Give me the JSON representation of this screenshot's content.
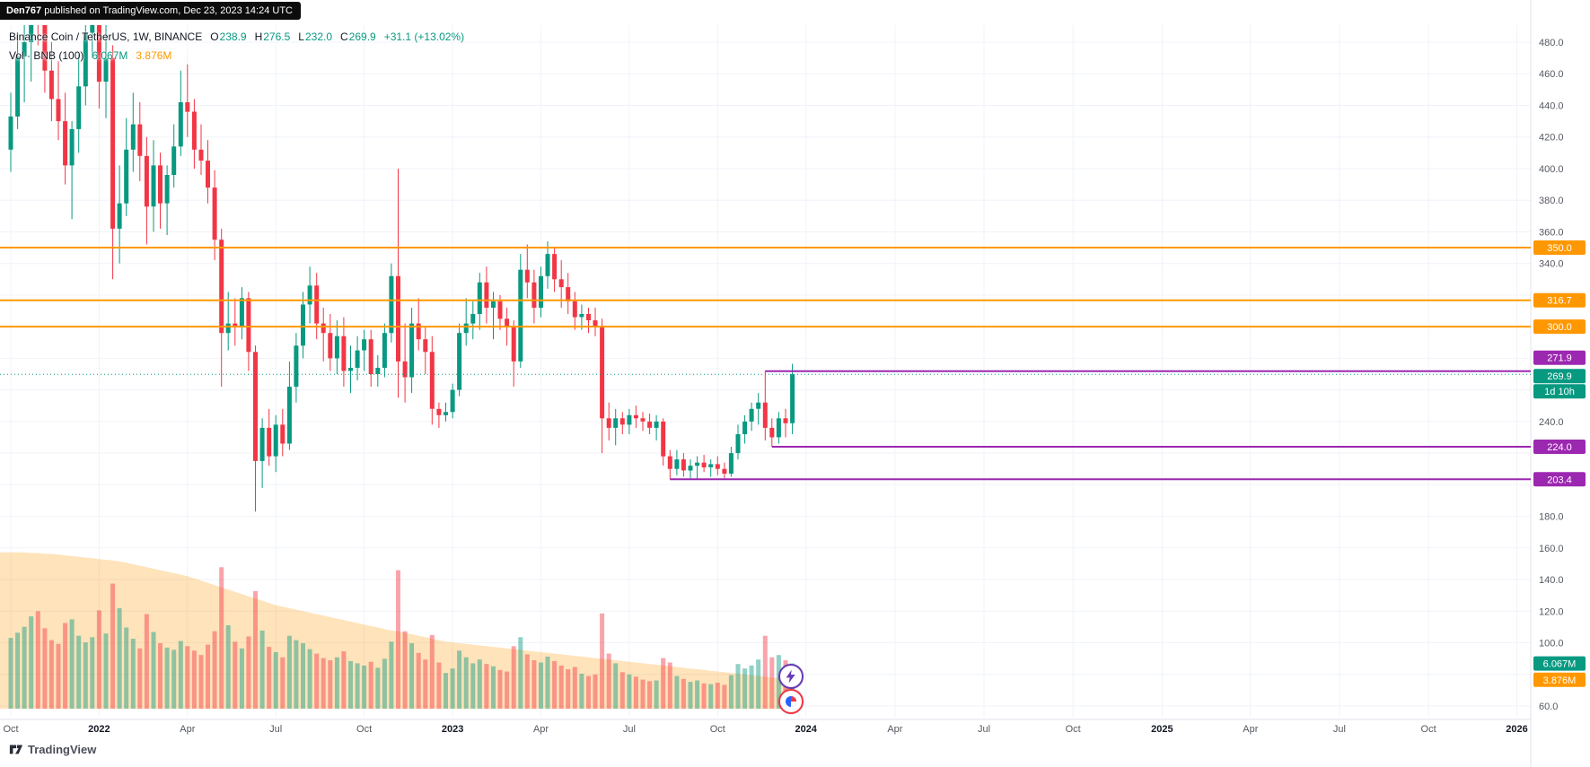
{
  "publisher_badge": {
    "author": "Den767",
    "text": " published on TradingView.com, Dec 23, 2023 14:24 UTC"
  },
  "legend": {
    "symbol": "Binance Coin / TetherUS, 1W, BINANCE",
    "ohlc": [
      {
        "k": "O",
        "v": "238.9"
      },
      {
        "k": "H",
        "v": "276.5"
      },
      {
        "k": "L",
        "v": "232.0"
      },
      {
        "k": "C",
        "v": "269.9"
      }
    ],
    "change": "+31.1 (+13.02%)",
    "volume_label": "Vol · BNB (100)",
    "volume_value": "6.067M",
    "volume_ma_value": "3.876M"
  },
  "footer": {
    "brand": "TradingView"
  },
  "stickers": [
    {
      "name": "lightning-sticker",
      "color": "#673ab7"
    },
    {
      "name": "pie-sticker",
      "color": "#f23645"
    }
  ],
  "chart_data": {
    "type": "candlestick",
    "title": "Binance Coin / TetherUS, 1W, BINANCE",
    "timeframe": "1W",
    "exchange": "BINANCE",
    "grid": true,
    "colors": {
      "up": "#089981",
      "down": "#F23645",
      "vol_area": "#FF9800",
      "grid": "#f0f3fa",
      "border": "#e0e3eb"
    },
    "y_axis": {
      "min": 60,
      "max": 480,
      "step": 20,
      "hidden_labels": [
        320,
        300,
        280,
        260,
        220,
        200,
        80
      ]
    },
    "x_axis": {
      "labels": [
        {
          "text": "Oct",
          "week": 0
        },
        {
          "text": "2022",
          "week": 13
        },
        {
          "text": "Apr",
          "week": 26
        },
        {
          "text": "Jul",
          "week": 39
        },
        {
          "text": "Oct",
          "week": 52
        },
        {
          "text": "2023",
          "week": 65
        },
        {
          "text": "Apr",
          "week": 78
        },
        {
          "text": "Jul",
          "week": 91
        },
        {
          "text": "Oct",
          "week": 104
        },
        {
          "text": "2024",
          "week": 117
        },
        {
          "text": "Apr",
          "week": 130.1
        },
        {
          "text": "Jul",
          "week": 143.2
        },
        {
          "text": "Oct",
          "week": 156.3
        },
        {
          "text": "2025",
          "week": 169.4
        },
        {
          "text": "Apr",
          "week": 182.4
        },
        {
          "text": "Jul",
          "week": 195.5
        },
        {
          "text": "Oct",
          "week": 208.6
        },
        {
          "text": "2026",
          "week": 221.6
        }
      ]
    },
    "last": {
      "price": "269.9",
      "value": 269.9,
      "countdown": "1d 10h",
      "color": "#089981"
    },
    "levels": [
      {
        "label": "350.0",
        "value": 350.0,
        "color": "#FF9800"
      },
      {
        "label": "316.7",
        "value": 316.7,
        "color": "#FF9800"
      },
      {
        "label": "300.0",
        "value": 300.0,
        "color": "#FF9800"
      },
      {
        "label": "271.9",
        "value": 271.9,
        "color": "#9C27B0",
        "from_week": 111,
        "badge_shift": -15
      },
      {
        "label": "224.0",
        "value": 224.0,
        "color": "#9C27B0",
        "from_week": 112
      },
      {
        "label": "203.4",
        "value": 203.4,
        "color": "#9C27B0",
        "from_week": 97
      }
    ],
    "volume_badges": [
      {
        "label": "6.067M",
        "value": 6.067,
        "color": "#089981"
      },
      {
        "label": "3.876M",
        "value": 3.876,
        "color": "#FF9800"
      }
    ],
    "candles": [
      [
        412,
        448,
        398,
        433,
        9.5
      ],
      [
        433,
        486,
        425,
        471,
        10.2
      ],
      [
        471,
        502,
        442,
        480,
        11.0
      ],
      [
        480,
        535,
        455,
        520,
        12.4
      ],
      [
        520,
        556,
        478,
        496,
        13.1
      ],
      [
        496,
        528,
        448,
        462,
        10.8
      ],
      [
        462,
        480,
        430,
        444,
        9.2
      ],
      [
        444,
        468,
        418,
        430,
        8.7
      ],
      [
        430,
        448,
        390,
        402,
        11.5
      ],
      [
        402,
        430,
        368,
        425,
        12.0
      ],
      [
        425,
        472,
        410,
        452,
        9.8
      ],
      [
        452,
        500,
        440,
        486,
        8.9
      ],
      [
        486,
        540,
        470,
        516,
        9.6
      ],
      [
        516,
        534,
        438,
        455,
        13.2
      ],
      [
        455,
        492,
        432,
        470,
        10.1
      ],
      [
        470,
        478,
        330,
        362,
        16.8
      ],
      [
        362,
        402,
        340,
        378,
        13.5
      ],
      [
        378,
        432,
        370,
        412,
        10.9
      ],
      [
        412,
        448,
        398,
        428,
        9.4
      ],
      [
        428,
        442,
        392,
        408,
        8.1
      ],
      [
        408,
        420,
        352,
        376,
        12.7
      ],
      [
        376,
        418,
        360,
        402,
        10.3
      ],
      [
        402,
        410,
        362,
        378,
        8.8
      ],
      [
        378,
        402,
        358,
        396,
        8.2
      ],
      [
        396,
        428,
        388,
        414,
        7.9
      ],
      [
        414,
        462,
        408,
        442,
        9.1
      ],
      [
        442,
        466,
        420,
        436,
        8.4
      ],
      [
        436,
        444,
        400,
        412,
        7.8
      ],
      [
        412,
        428,
        396,
        405,
        7.2
      ],
      [
        405,
        418,
        378,
        388,
        8.6
      ],
      [
        388,
        399,
        342,
        355,
        10.4
      ],
      [
        355,
        362,
        262,
        296,
        19.0
      ],
      [
        296,
        322,
        285,
        302,
        11.2
      ],
      [
        302,
        318,
        288,
        300,
        9.0
      ],
      [
        300,
        325,
        292,
        318,
        8.1
      ],
      [
        318,
        322,
        272,
        284,
        9.7
      ],
      [
        284,
        288,
        183,
        215,
        15.8
      ],
      [
        215,
        242,
        198,
        236,
        10.5
      ],
      [
        236,
        248,
        212,
        218,
        8.3
      ],
      [
        218,
        244,
        208,
        238,
        7.6
      ],
      [
        238,
        248,
        218,
        226,
        6.9
      ],
      [
        226,
        278,
        222,
        262,
        9.8
      ],
      [
        262,
        296,
        252,
        288,
        9.2
      ],
      [
        288,
        322,
        280,
        314,
        8.8
      ],
      [
        314,
        338,
        302,
        326,
        8.0
      ],
      [
        326,
        334,
        292,
        302,
        7.4
      ],
      [
        302,
        312,
        278,
        296,
        6.8
      ],
      [
        296,
        308,
        272,
        280,
        6.5
      ],
      [
        280,
        304,
        270,
        294,
        6.9
      ],
      [
        294,
        306,
        262,
        272,
        7.7
      ],
      [
        272,
        288,
        258,
        274,
        6.4
      ],
      [
        274,
        294,
        266,
        285,
        6.1
      ],
      [
        285,
        298,
        272,
        292,
        5.8
      ],
      [
        292,
        298,
        262,
        270,
        6.3
      ],
      [
        270,
        282,
        262,
        274,
        5.5
      ],
      [
        274,
        302,
        268,
        296,
        6.7
      ],
      [
        296,
        340,
        290,
        332,
        9.0
      ],
      [
        332,
        400,
        255,
        278,
        18.6
      ],
      [
        278,
        302,
        252,
        268,
        10.4
      ],
      [
        268,
        312,
        258,
        302,
        8.8
      ],
      [
        302,
        318,
        285,
        292,
        7.5
      ],
      [
        292,
        300,
        270,
        284,
        6.6
      ],
      [
        284,
        294,
        238,
        248,
        9.9
      ],
      [
        248,
        252,
        236,
        244,
        6.2
      ],
      [
        244,
        252,
        240,
        246,
        4.8
      ],
      [
        246,
        264,
        242,
        260,
        5.4
      ],
      [
        260,
        302,
        256,
        296,
        7.8
      ],
      [
        296,
        318,
        288,
        302,
        6.9
      ],
      [
        302,
        316,
        292,
        308,
        6.1
      ],
      [
        308,
        334,
        298,
        328,
        6.6
      ],
      [
        328,
        338,
        302,
        312,
        6.0
      ],
      [
        312,
        322,
        292,
        316,
        5.7
      ],
      [
        316,
        320,
        298,
        305,
        5.2
      ],
      [
        305,
        312,
        288,
        300,
        5.0
      ],
      [
        300,
        304,
        262,
        278,
        8.4
      ],
      [
        278,
        346,
        274,
        336,
        9.6
      ],
      [
        336,
        352,
        318,
        328,
        7.3
      ],
      [
        328,
        336,
        302,
        312,
        6.5
      ],
      [
        312,
        338,
        306,
        332,
        6.2
      ],
      [
        332,
        354,
        324,
        346,
        7.0
      ],
      [
        346,
        350,
        322,
        330,
        6.4
      ],
      [
        330,
        342,
        312,
        325,
        5.8
      ],
      [
        325,
        334,
        308,
        316,
        5.3
      ],
      [
        316,
        322,
        298,
        306,
        5.6
      ],
      [
        306,
        314,
        298,
        308,
        4.7
      ],
      [
        308,
        312,
        296,
        304,
        4.4
      ],
      [
        304,
        312,
        294,
        300,
        4.6
      ],
      [
        300,
        305,
        220,
        242,
        12.8
      ],
      [
        242,
        252,
        228,
        236,
        7.4
      ],
      [
        236,
        248,
        225,
        242,
        6.1
      ],
      [
        242,
        246,
        232,
        238,
        4.9
      ],
      [
        238,
        248,
        232,
        244,
        4.6
      ],
      [
        244,
        250,
        236,
        242,
        4.3
      ],
      [
        242,
        246,
        234,
        240,
        3.9
      ],
      [
        240,
        245,
        232,
        236,
        3.7
      ],
      [
        236,
        244,
        228,
        240,
        3.8
      ],
      [
        240,
        242,
        212,
        218,
        6.8
      ],
      [
        218,
        222,
        203.4,
        210,
        6.2
      ],
      [
        210,
        222,
        206,
        216,
        4.4
      ],
      [
        216,
        220,
        205,
        209,
        4.0
      ],
      [
        209,
        216,
        204,
        212,
        3.6
      ],
      [
        212,
        218,
        204,
        214,
        3.8
      ],
      [
        214,
        219,
        208,
        211,
        3.4
      ],
      [
        211,
        216,
        205,
        213,
        3.3
      ],
      [
        213,
        218,
        206,
        210,
        3.5
      ],
      [
        210,
        214,
        204,
        207,
        3.2
      ],
      [
        207,
        224,
        205,
        220,
        4.5
      ],
      [
        220,
        238,
        216,
        232,
        6.0
      ],
      [
        232,
        244,
        226,
        240,
        5.4
      ],
      [
        240,
        252,
        234,
        248,
        5.8
      ],
      [
        248,
        258,
        238,
        252,
        6.6
      ],
      [
        252,
        271.9,
        228,
        236,
        9.8
      ],
      [
        236,
        242,
        224,
        230,
        6.9
      ],
      [
        230,
        246,
        226,
        242,
        7.2
      ],
      [
        242,
        248,
        230,
        238.9,
        6.5
      ],
      [
        238.9,
        276.5,
        232,
        269.9,
        6.067
      ]
    ],
    "volume_ma": [
      21,
      21,
      21,
      20.9,
      20.9,
      20.8,
      20.8,
      20.7,
      20.6,
      20.5,
      20.4,
      20.3,
      20.2,
      20.1,
      20,
      19.9,
      19.8,
      19.6,
      19.4,
      19.2,
      19,
      18.8,
      18.6,
      18.4,
      18.2,
      18,
      17.8,
      17.5,
      17.2,
      16.9,
      16.6,
      16.3,
      16,
      15.7,
      15.4,
      15.1,
      14.8,
      14.5,
      14.2,
      13.9,
      13.7,
      13.5,
      13.3,
      13.1,
      12.9,
      12.7,
      12.5,
      12.3,
      12.1,
      11.9,
      11.7,
      11.5,
      11.3,
      11.1,
      10.9,
      10.7,
      10.5,
      10.4,
      10.2,
      10,
      9.8,
      9.6,
      9.4,
      9.2,
      9,
      8.9,
      8.8,
      8.7,
      8.6,
      8.5,
      8.4,
      8.3,
      8.2,
      8.1,
      8,
      7.9,
      7.8,
      7.7,
      7.6,
      7.5,
      7.4,
      7.3,
      7.2,
      7.1,
      7,
      6.9,
      6.8,
      6.7,
      6.6,
      6.5,
      6.4,
      6.3,
      6.2,
      6.1,
      6,
      5.9,
      5.8,
      5.7,
      5.6,
      5.5,
      5.4,
      5.3,
      5.2,
      5.1,
      5,
      4.9,
      4.8,
      4.7,
      4.6,
      4.5,
      4.4,
      4.3,
      4.2,
      4.1,
      4,
      3.876
    ]
  }
}
